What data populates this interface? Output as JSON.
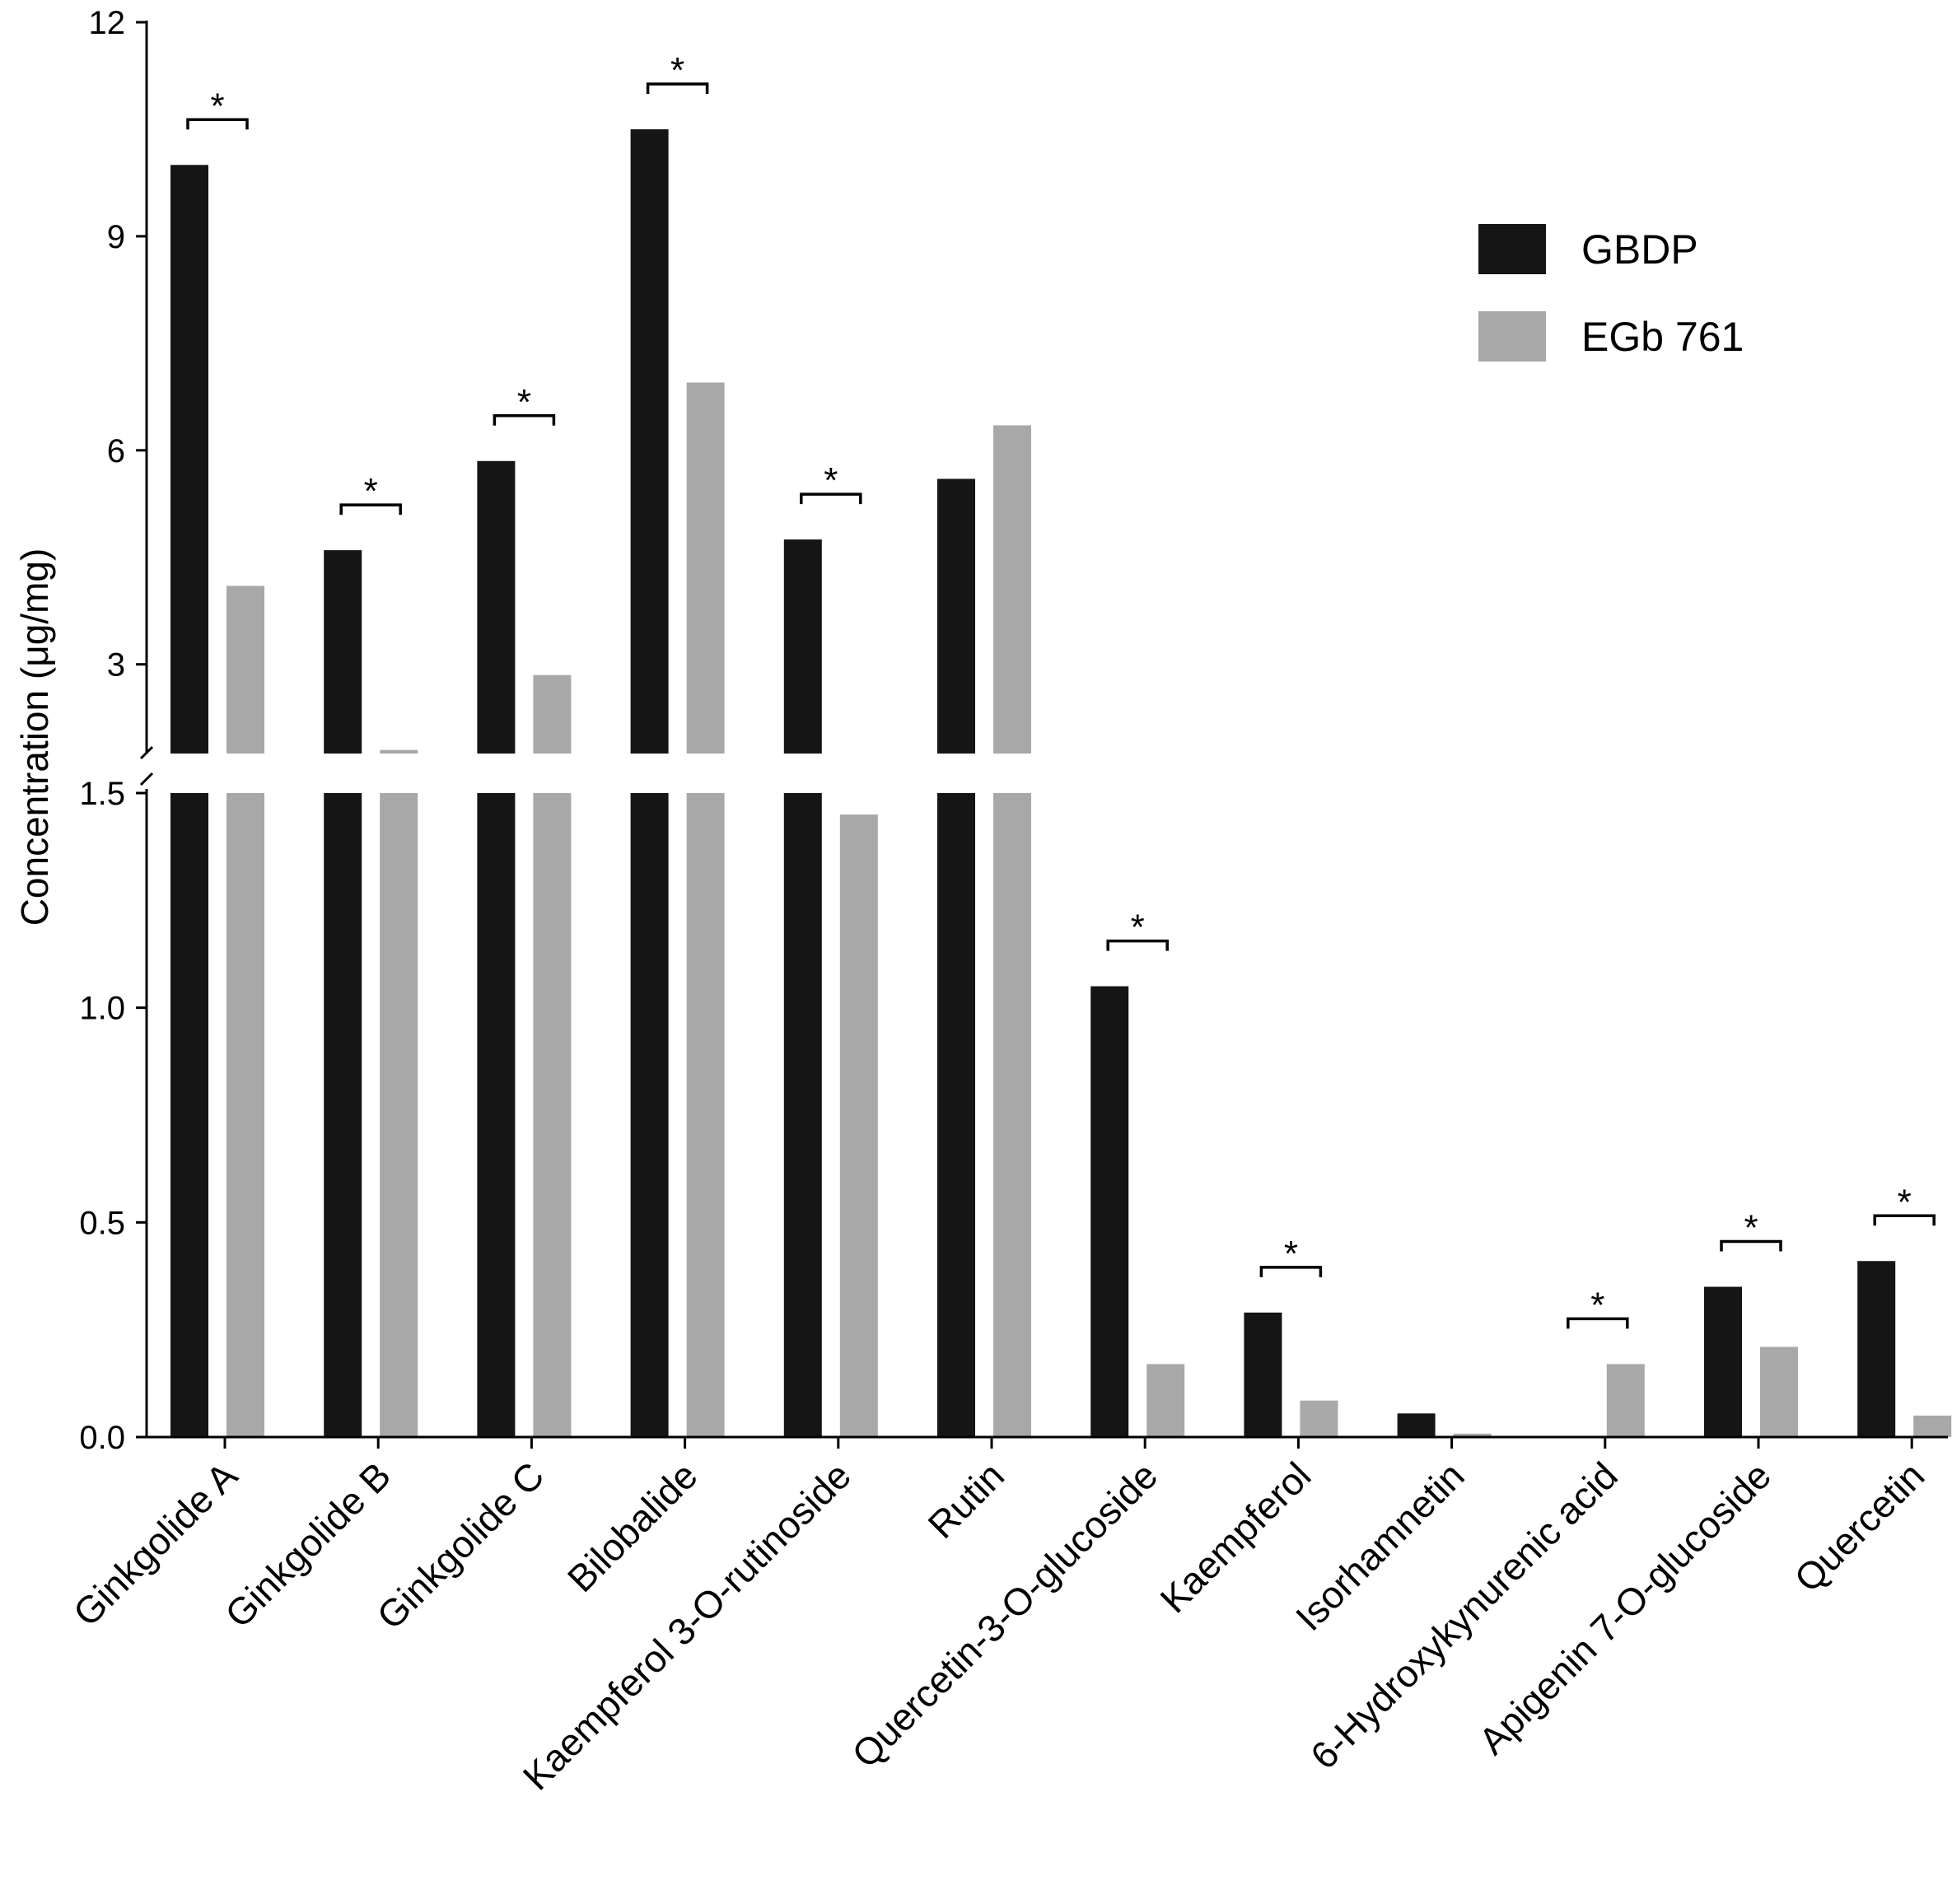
{
  "chart_data": {
    "type": "bar",
    "ylabel": "Concentration (μg/mg)",
    "xlabel": "",
    "y_axis_break": {
      "lower_range": [
        0,
        1.5
      ],
      "upper_range": [
        1.75,
        12
      ]
    },
    "lower_ticks": [
      "0.0",
      "0.5",
      "1.0",
      "1.5"
    ],
    "upper_ticks": [
      "3",
      "6",
      "9",
      "12"
    ],
    "legend_position": "top-right",
    "categories": [
      "Ginkgolide A",
      "Ginkgolide B",
      "Ginkgolide C",
      "Bilobalide",
      "Kaempferol 3-O-rutinoside",
      "Rutin",
      "Quercetin-3-O-glucoside",
      "Kaempferol",
      "Isorhamnetin",
      "6-Hydroxykynurenic acid",
      "Apigenin 7-O-glucoside",
      "Quercetin"
    ],
    "series": [
      {
        "name": "GBDP",
        "color": "#151515",
        "values": [
          10.0,
          4.6,
          5.85,
          10.5,
          4.75,
          5.6,
          1.05,
          0.29,
          0.055,
          0.0,
          0.35,
          0.41
        ]
      },
      {
        "name": "EGb 761",
        "color": "#a8a8a8",
        "values": [
          4.1,
          1.8,
          2.85,
          6.95,
          1.45,
          6.35,
          0.17,
          0.085,
          0.008,
          0.17,
          0.21,
          0.05
        ]
      }
    ],
    "significance": [
      true,
      true,
      true,
      true,
      true,
      false,
      true,
      true,
      false,
      true,
      true,
      true
    ],
    "significance_symbol": "*"
  }
}
